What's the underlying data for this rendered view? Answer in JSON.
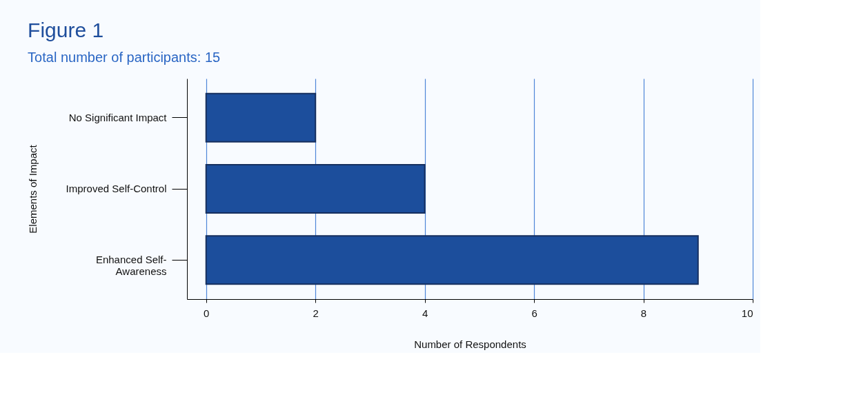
{
  "chart_data": {
    "type": "bar",
    "orientation": "horizontal",
    "title": "Figure 1",
    "subtitle": "Total number of participants: 15",
    "xlabel": "Number of Respondents",
    "ylabel": "Elements of Impact",
    "categories": [
      "No Significant Impact",
      "Improved Self-Control",
      "Enhanced Self-Awareness"
    ],
    "values": [
      2,
      4,
      9
    ],
    "color": "#1c4e9c",
    "xlim": [
      -0.35,
      10
    ],
    "xticks": [
      0,
      2,
      4,
      6,
      8,
      10
    ],
    "grid": "x"
  }
}
